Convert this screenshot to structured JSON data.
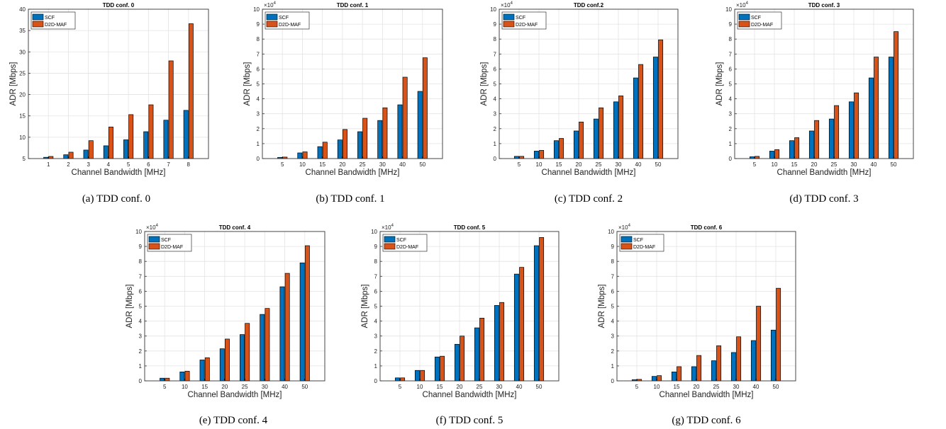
{
  "colors": {
    "scf": "#0072BD",
    "d2d_maf": "#D95319"
  },
  "chart_data": [
    {
      "type": "bar",
      "title": "TDD conf. 0",
      "caption": "(a) TDD conf. 0",
      "xlabel": "Channel Bandwidth [MHz]",
      "ylabel": "ADR [Mbps]",
      "categories": [
        "1",
        "2",
        "3",
        "4",
        "5",
        "6",
        "7",
        "8"
      ],
      "yticks": [
        "5",
        "10",
        "15",
        "20",
        "25",
        "30",
        "35",
        "40"
      ],
      "ylim": [
        5,
        40
      ],
      "multiplier": "",
      "legend_position": "top-left",
      "grid": true,
      "series": [
        {
          "name": "SCF",
          "values": [
            5.3,
            5.9,
            7.0,
            8.0,
            9.4,
            11.3,
            14.0,
            16.3
          ]
        },
        {
          "name": "D2D-MAF",
          "values": [
            5.5,
            6.5,
            9.2,
            12.4,
            15.3,
            17.6,
            27.9,
            36.6
          ]
        }
      ]
    },
    {
      "type": "bar",
      "title": "TDD conf. 1",
      "caption": "(b) TDD conf. 1",
      "xlabel": "Channel Bandwidth [MHz]",
      "ylabel": "ADR [Mbps]",
      "categories": [
        "5",
        "10",
        "15",
        "20",
        "25",
        "30",
        "40",
        "50"
      ],
      "yticks": [
        "0",
        "1",
        "2",
        "3",
        "4",
        "5",
        "6",
        "7",
        "8",
        "9",
        "10"
      ],
      "ylim": [
        0,
        10
      ],
      "multiplier": "×10",
      "multiplier_exp": "4",
      "legend_position": "top-left",
      "grid": true,
      "series": [
        {
          "name": "SCF",
          "values": [
            0.08,
            0.38,
            0.8,
            1.25,
            1.8,
            2.55,
            3.6,
            4.5
          ]
        },
        {
          "name": "D2D-MAF",
          "values": [
            0.1,
            0.45,
            1.1,
            1.95,
            2.7,
            3.4,
            5.45,
            6.75
          ]
        }
      ]
    },
    {
      "type": "bar",
      "title": "TDD conf.2",
      "caption": "(c) TDD conf. 2",
      "xlabel": "Channel Bandwidth [MHz]",
      "ylabel": "ADR [Mbps]",
      "categories": [
        "5",
        "10",
        "15",
        "20",
        "25",
        "30",
        "40",
        "50"
      ],
      "yticks": [
        "0",
        "1",
        "2",
        "3",
        "4",
        "5",
        "6",
        "7",
        "8",
        "9",
        "10"
      ],
      "ylim": [
        0,
        10
      ],
      "multiplier": "×10",
      "multiplier_exp": "4",
      "legend_position": "top-left",
      "grid": true,
      "series": [
        {
          "name": "SCF",
          "values": [
            0.15,
            0.5,
            1.2,
            1.85,
            2.65,
            3.8,
            5.4,
            6.8
          ]
        },
        {
          "name": "D2D-MAF",
          "values": [
            0.15,
            0.55,
            1.35,
            2.45,
            3.4,
            4.2,
            6.3,
            7.95
          ]
        }
      ]
    },
    {
      "type": "bar",
      "title": "TDD conf. 3",
      "caption": "(d) TDD conf. 3",
      "xlabel": "Channel Bandwidth [MHz]",
      "ylabel": "ADR [Mbps]",
      "categories": [
        "5",
        "10",
        "15",
        "20",
        "25",
        "30",
        "40",
        "50"
      ],
      "yticks": [
        "0",
        "1",
        "2",
        "3",
        "4",
        "5",
        "6",
        "7",
        "8",
        "9",
        "10"
      ],
      "ylim": [
        0,
        10
      ],
      "multiplier": "×10",
      "multiplier_exp": "4",
      "legend_position": "top-left",
      "grid": true,
      "series": [
        {
          "name": "SCF",
          "values": [
            0.12,
            0.5,
            1.2,
            1.85,
            2.65,
            3.8,
            5.4,
            6.8
          ]
        },
        {
          "name": "D2D-MAF",
          "values": [
            0.15,
            0.6,
            1.4,
            2.55,
            3.55,
            4.4,
            6.8,
            8.5
          ]
        }
      ]
    },
    {
      "type": "bar",
      "title": "TDD conf. 4",
      "caption": "(e) TDD conf. 4",
      "xlabel": "Channel Bandwidth [MHz]",
      "ylabel": "ADR [Mbps]",
      "categories": [
        "5",
        "10",
        "15",
        "20",
        "25",
        "30",
        "40",
        "50"
      ],
      "yticks": [
        "0",
        "1",
        "2",
        "3",
        "4",
        "5",
        "6",
        "7",
        "8",
        "9",
        "10"
      ],
      "ylim": [
        0,
        10
      ],
      "multiplier": "×10",
      "multiplier_exp": "4",
      "legend_position": "top-left",
      "grid": true,
      "series": [
        {
          "name": "SCF",
          "values": [
            0.18,
            0.6,
            1.4,
            2.15,
            3.1,
            4.45,
            6.3,
            7.9
          ]
        },
        {
          "name": "D2D-MAF",
          "values": [
            0.18,
            0.65,
            1.55,
            2.8,
            3.85,
            4.85,
            7.2,
            9.05
          ]
        }
      ]
    },
    {
      "type": "bar",
      "title": "TDD conf. 5",
      "caption": "(f) TDD conf. 5",
      "xlabel": "Channel Bandwidth [MHz]",
      "ylabel": "ADR [Mbps]",
      "categories": [
        "5",
        "10",
        "15",
        "20",
        "25",
        "30",
        "40",
        "50"
      ],
      "yticks": [
        "0",
        "1",
        "2",
        "3",
        "4",
        "5",
        "6",
        "7",
        "8",
        "9",
        "10"
      ],
      "ylim": [
        0,
        10
      ],
      "multiplier": "×10",
      "multiplier_exp": "4",
      "legend_position": "top-left",
      "grid": true,
      "series": [
        {
          "name": "SCF",
          "values": [
            0.2,
            0.7,
            1.6,
            2.45,
            3.55,
            5.05,
            7.15,
            9.05
          ]
        },
        {
          "name": "D2D-MAF",
          "values": [
            0.2,
            0.7,
            1.65,
            3.0,
            4.2,
            5.25,
            7.6,
            9.6
          ]
        }
      ]
    },
    {
      "type": "bar",
      "title": "TDD conf. 6",
      "caption": "(g) TDD conf. 6",
      "xlabel": "Channel Bandwidth [MHz]",
      "ylabel": "ADR [Mbps]",
      "categories": [
        "5",
        "10",
        "15",
        "20",
        "25",
        "30",
        "40",
        "50"
      ],
      "yticks": [
        "0",
        "1",
        "2",
        "3",
        "4",
        "5",
        "6",
        "7",
        "8",
        "9",
        "10"
      ],
      "ylim": [
        0,
        10
      ],
      "multiplier": "×10",
      "multiplier_exp": "4",
      "legend_position": "top-left",
      "grid": true,
      "series": [
        {
          "name": "SCF",
          "values": [
            0.08,
            0.3,
            0.6,
            0.95,
            1.35,
            1.9,
            2.7,
            3.4
          ]
        },
        {
          "name": "D2D-MAF",
          "values": [
            0.1,
            0.35,
            0.95,
            1.7,
            2.35,
            2.95,
            5.0,
            6.2
          ]
        }
      ]
    }
  ]
}
